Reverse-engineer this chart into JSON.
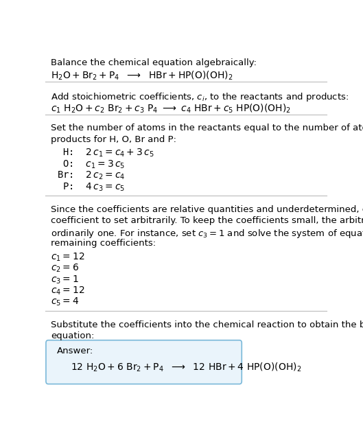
{
  "title_line1": "Balance the chemical equation algebraically:",
  "eq1": "$\\mathrm{H_2O + Br_2 + P_4 \\ \\ \\longrightarrow \\ \\ HBr + HP(O)(OH)_2}$",
  "section2_title": "Add stoichiometric coefficients, $c_i$, to the reactants and products:",
  "eq2": "$c_1\\ \\mathrm{H_2O} + c_2\\ \\mathrm{Br_2} + c_3\\ \\mathrm{P_4}\\ \\longrightarrow\\ c_4\\ \\mathrm{HBr} + c_5\\ \\mathrm{HP(O)(OH)_2}$",
  "section3_title_line1": "Set the number of atoms in the reactants equal to the number of atoms in the",
  "section3_title_line2": "products for H, O, Br and P:",
  "section3_eqs": [
    " H:  $2\\,c_1 = c_4 + 3\\,c_5$",
    " O:  $c_1 = 3\\,c_5$",
    "Br:  $2\\,c_2 = c_4$",
    " P:  $4\\,c_3 = c_5$"
  ],
  "section4_line1": "Since the coefficients are relative quantities and underdetermined, choose a",
  "section4_line2": "coefficient to set arbitrarily. To keep the coefficients small, the arbitrary value is",
  "section4_line3_pre": "ordinarily one. For instance, set ",
  "section4_line3_math": "$c_3 = 1$",
  "section4_line3_post": " and solve the system of equations for the",
  "section4_line4": "remaining coefficients:",
  "coeff_values": [
    "$c_1 = 12$",
    "$c_2 = 6$",
    "$c_3 = 1$",
    "$c_4 = 12$",
    "$c_5 = 4$"
  ],
  "section5_line1": "Substitute the coefficients into the chemical reaction to obtain the balanced",
  "section5_line2": "equation:",
  "answer_label": "Answer:",
  "answer_eq": "$\\mathrm{12\\ H_2O + 6\\ Br_2 + P_4\\ \\ \\longrightarrow\\ \\ 12\\ HBr + 4\\ HP(O)(OH)_2}$",
  "bg_color": "#ffffff",
  "text_color": "#000000",
  "box_bg": "#eaf4fb",
  "box_border": "#7ab8d9",
  "divider_color": "#bbbbbb",
  "font_size": 9.5,
  "eq_font_size": 10.0
}
